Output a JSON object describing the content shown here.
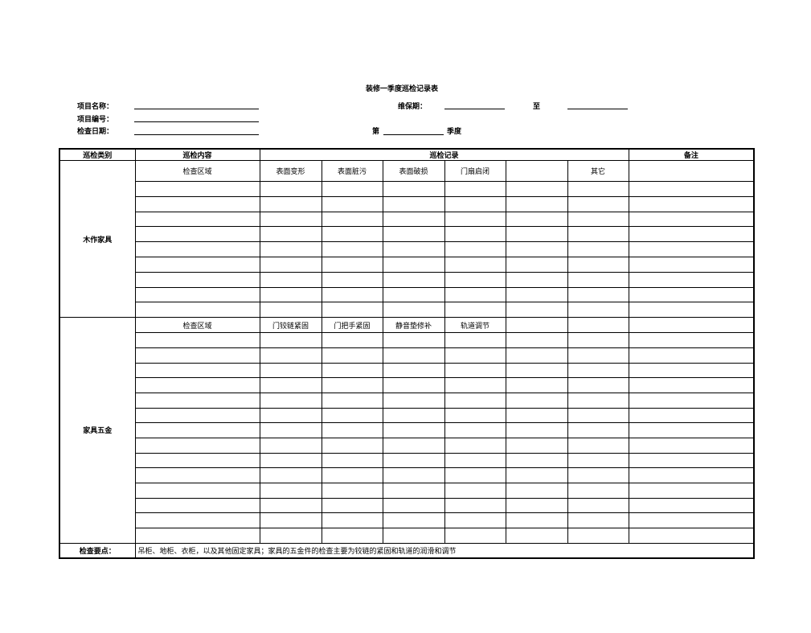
{
  "title": "装修一季度巡检记录表",
  "fields": {
    "project_name": "项目名称：",
    "project_no": "项目编号：",
    "check_date": "检查日期：",
    "maintenance_period": "维保期：",
    "to": "至",
    "nth": "第",
    "quarter": "季度"
  },
  "headers": [
    "巡检类别",
    "巡检内容",
    "巡检记录",
    "备注"
  ],
  "sections": [
    {
      "category": "木作家具",
      "area_label": "检查区域",
      "items": [
        "表面变形",
        "表面脏污",
        "表面破损",
        "门扇启闭",
        "",
        "其它"
      ],
      "rows": 9
    },
    {
      "category": "家具五金",
      "area_label": "检查区域",
      "items": [
        "门铰链紧固",
        "门把手紧固",
        "静音垫修补",
        "轨道调节",
        "",
        ""
      ],
      "rows": 14
    }
  ],
  "footer": {
    "label": "检查要点：",
    "text": "吊柜、地柜、衣柜，以及其他固定家具；家具的五金件的检查主要为铰链的紧固和轨道的润滑和调节"
  }
}
